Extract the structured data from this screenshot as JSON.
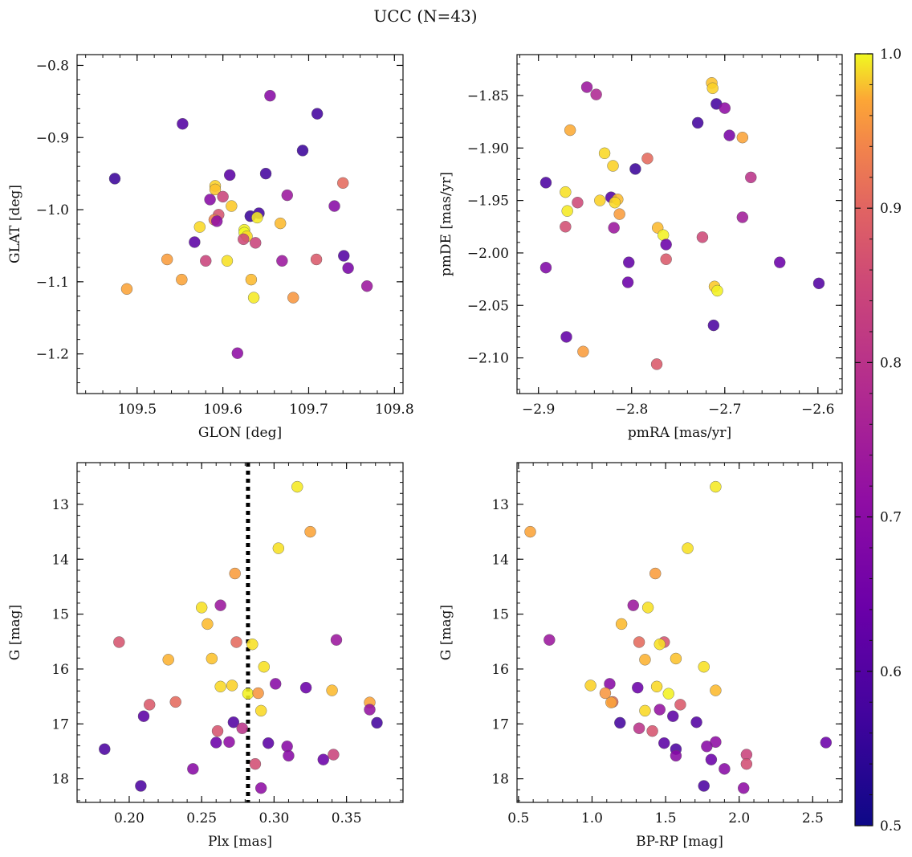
{
  "figure": {
    "title": "UCC (N=43)"
  },
  "colorbar": {
    "colormap": "plasma",
    "range": [
      0.5,
      1.0
    ],
    "ticks": [
      "0.5",
      "0.6",
      "0.7",
      "0.8",
      "0.9",
      "1.0"
    ]
  },
  "chart_data": [
    {
      "type": "scatter",
      "xlabel": "GLON [deg]",
      "ylabel": "GLAT [deg]",
      "xlim": [
        109.43,
        109.81
      ],
      "ylim": [
        -1.255,
        -0.785
      ],
      "y_inverted": false,
      "xticks": [
        109.5,
        109.6,
        109.7,
        109.8
      ],
      "xtick_labels": [
        "109.5",
        "109.6",
        "109.7",
        "109.8"
      ],
      "yticks": [
        -0.8,
        -0.9,
        -1.0,
        -1.1,
        -1.2
      ],
      "ytick_labels": [
        "−0.8",
        "−0.9",
        "−1.0",
        "−1.1",
        "−1.2"
      ],
      "points": [
        {
          "x": 109.474,
          "y": -0.957,
          "c": 0.52
        },
        {
          "x": 109.553,
          "y": -0.881,
          "c": 0.55
        },
        {
          "x": 109.655,
          "y": -0.842,
          "c": 0.62
        },
        {
          "x": 109.71,
          "y": -0.867,
          "c": 0.53
        },
        {
          "x": 109.693,
          "y": -0.918,
          "c": 0.52
        },
        {
          "x": 109.608,
          "y": -0.952,
          "c": 0.56
        },
        {
          "x": 109.65,
          "y": -0.95,
          "c": 0.53
        },
        {
          "x": 109.74,
          "y": -0.963,
          "c": 0.8
        },
        {
          "x": 109.675,
          "y": -0.98,
          "c": 0.65
        },
        {
          "x": 109.591,
          "y": -0.967,
          "c": 0.95
        },
        {
          "x": 109.591,
          "y": -0.972,
          "c": 0.93
        },
        {
          "x": 109.585,
          "y": -0.986,
          "c": 0.62
        },
        {
          "x": 109.6,
          "y": -0.982,
          "c": 0.73
        },
        {
          "x": 109.61,
          "y": -0.995,
          "c": 0.94
        },
        {
          "x": 109.595,
          "y": -1.007,
          "c": 0.76
        },
        {
          "x": 109.59,
          "y": -1.014,
          "c": 0.84
        },
        {
          "x": 109.593,
          "y": -1.016,
          "c": 0.63
        },
        {
          "x": 109.573,
          "y": -1.024,
          "c": 0.96
        },
        {
          "x": 109.632,
          "y": -1.009,
          "c": 0.52
        },
        {
          "x": 109.642,
          "y": -1.005,
          "c": 0.53
        },
        {
          "x": 109.64,
          "y": -1.011,
          "c": 0.98
        },
        {
          "x": 109.667,
          "y": -1.019,
          "c": 0.92
        },
        {
          "x": 109.73,
          "y": -0.995,
          "c": 0.62
        },
        {
          "x": 109.625,
          "y": -1.028,
          "c": 0.99
        },
        {
          "x": 109.625,
          "y": -1.032,
          "c": 1.0
        },
        {
          "x": 109.628,
          "y": -1.037,
          "c": 0.96
        },
        {
          "x": 109.624,
          "y": -1.041,
          "c": 0.74
        },
        {
          "x": 109.638,
          "y": -1.046,
          "c": 0.73
        },
        {
          "x": 109.567,
          "y": -1.045,
          "c": 0.56
        },
        {
          "x": 109.741,
          "y": -1.064,
          "c": 0.55
        },
        {
          "x": 109.535,
          "y": -1.069,
          "c": 0.88
        },
        {
          "x": 109.58,
          "y": -1.071,
          "c": 0.73
        },
        {
          "x": 109.605,
          "y": -1.071,
          "c": 0.97
        },
        {
          "x": 109.669,
          "y": -1.071,
          "c": 0.65
        },
        {
          "x": 109.709,
          "y": -1.069,
          "c": 0.77
        },
        {
          "x": 109.746,
          "y": -1.081,
          "c": 0.6
        },
        {
          "x": 109.552,
          "y": -1.097,
          "c": 0.89
        },
        {
          "x": 109.633,
          "y": -1.097,
          "c": 0.92
        },
        {
          "x": 109.768,
          "y": -1.106,
          "c": 0.65
        },
        {
          "x": 109.488,
          "y": -1.11,
          "c": 0.89
        },
        {
          "x": 109.636,
          "y": -1.122,
          "c": 0.98
        },
        {
          "x": 109.682,
          "y": -1.122,
          "c": 0.87
        },
        {
          "x": 109.617,
          "y": -1.199,
          "c": 0.63
        }
      ]
    },
    {
      "type": "scatter",
      "xlabel": "pmRA [mas/yr]",
      "ylabel": "pmDE [mas/yr]",
      "xlim": [
        -2.923,
        -2.574
      ],
      "ylim": [
        -2.134,
        -1.811
      ],
      "y_inverted": false,
      "xticks": [
        -2.9,
        -2.8,
        -2.7,
        -2.6
      ],
      "xtick_labels": [
        "−2.9",
        "−2.8",
        "−2.7",
        "−2.6"
      ],
      "yticks": [
        -1.85,
        -1.9,
        -1.95,
        -2.0,
        -2.05,
        -2.1
      ],
      "ytick_labels": [
        "−1.85",
        "−1.90",
        "−1.95",
        "−2.00",
        "−2.05",
        "−2.10"
      ],
      "points": [
        {
          "x": -2.714,
          "y": -1.838,
          "c": 0.93
        },
        {
          "x": -2.713,
          "y": -1.843,
          "c": 0.95
        },
        {
          "x": -2.848,
          "y": -1.842,
          "c": 0.65
        },
        {
          "x": -2.838,
          "y": -1.849,
          "c": 0.68
        },
        {
          "x": -2.709,
          "y": -1.858,
          "c": 0.53
        },
        {
          "x": -2.7,
          "y": -1.862,
          "c": 0.63
        },
        {
          "x": -2.729,
          "y": -1.876,
          "c": 0.53
        },
        {
          "x": -2.866,
          "y": -1.883,
          "c": 0.9
        },
        {
          "x": -2.695,
          "y": -1.888,
          "c": 0.6
        },
        {
          "x": -2.681,
          "y": -1.89,
          "c": 0.89
        },
        {
          "x": -2.829,
          "y": -1.905,
          "c": 0.96
        },
        {
          "x": -2.783,
          "y": -1.91,
          "c": 0.8
        },
        {
          "x": -2.82,
          "y": -1.917,
          "c": 0.95
        },
        {
          "x": -2.796,
          "y": -1.92,
          "c": 0.52
        },
        {
          "x": -2.892,
          "y": -1.933,
          "c": 0.54
        },
        {
          "x": -2.672,
          "y": -1.928,
          "c": 0.7
        },
        {
          "x": -2.871,
          "y": -1.942,
          "c": 0.97
        },
        {
          "x": -2.822,
          "y": -1.947,
          "c": 0.55
        },
        {
          "x": -2.815,
          "y": -1.949,
          "c": 0.92
        },
        {
          "x": -2.834,
          "y": -1.95,
          "c": 0.95
        },
        {
          "x": -2.818,
          "y": -1.952,
          "c": 0.96
        },
        {
          "x": -2.858,
          "y": -1.952,
          "c": 0.74
        },
        {
          "x": -2.869,
          "y": -1.96,
          "c": 0.98
        },
        {
          "x": -2.813,
          "y": -1.963,
          "c": 0.88
        },
        {
          "x": -2.681,
          "y": -1.966,
          "c": 0.66
        },
        {
          "x": -2.871,
          "y": -1.975,
          "c": 0.75
        },
        {
          "x": -2.819,
          "y": -1.976,
          "c": 0.65
        },
        {
          "x": -2.772,
          "y": -1.976,
          "c": 0.92
        },
        {
          "x": -2.766,
          "y": -1.983,
          "c": 0.99
        },
        {
          "x": -2.724,
          "y": -1.985,
          "c": 0.74
        },
        {
          "x": -2.763,
          "y": -1.992,
          "c": 0.58
        },
        {
          "x": -2.763,
          "y": -2.006,
          "c": 0.77
        },
        {
          "x": -2.641,
          "y": -2.009,
          "c": 0.58
        },
        {
          "x": -2.803,
          "y": -2.009,
          "c": 0.57
        },
        {
          "x": -2.892,
          "y": -2.014,
          "c": 0.61
        },
        {
          "x": -2.804,
          "y": -2.028,
          "c": 0.58
        },
        {
          "x": -2.599,
          "y": -2.029,
          "c": 0.55
        },
        {
          "x": -2.711,
          "y": -2.032,
          "c": 0.94
        },
        {
          "x": -2.708,
          "y": -2.036,
          "c": 0.99
        },
        {
          "x": -2.712,
          "y": -2.069,
          "c": 0.54
        },
        {
          "x": -2.87,
          "y": -2.08,
          "c": 0.57
        },
        {
          "x": -2.852,
          "y": -2.094,
          "c": 0.88
        },
        {
          "x": -2.773,
          "y": -2.106,
          "c": 0.77
        }
      ]
    },
    {
      "type": "scatter",
      "xlabel": "Plx [mas]",
      "ylabel": "G [mag]",
      "xlim": [
        0.164,
        0.389
      ],
      "ylim": [
        18.43,
        12.24
      ],
      "y_inverted": true,
      "vline": {
        "x": 0.282,
        "style": "dotted"
      },
      "xticks": [
        0.2,
        0.25,
        0.3,
        0.35
      ],
      "xtick_labels": [
        "0.20",
        "0.25",
        "0.30",
        "0.35"
      ],
      "yticks": [
        13,
        14,
        15,
        16,
        17,
        18
      ],
      "ytick_labels": [
        "13",
        "14",
        "15",
        "16",
        "17",
        "18"
      ],
      "points": [
        {
          "x": 0.316,
          "y": 12.68,
          "c": 0.98
        },
        {
          "x": 0.325,
          "y": 13.5,
          "c": 0.89
        },
        {
          "x": 0.303,
          "y": 13.8,
          "c": 0.97
        },
        {
          "x": 0.273,
          "y": 14.26,
          "c": 0.88
        },
        {
          "x": 0.263,
          "y": 14.84,
          "c": 0.65
        },
        {
          "x": 0.25,
          "y": 14.88,
          "c": 0.97
        },
        {
          "x": 0.254,
          "y": 15.18,
          "c": 0.92
        },
        {
          "x": 0.343,
          "y": 15.47,
          "c": 0.65
        },
        {
          "x": 0.193,
          "y": 15.51,
          "c": 0.76
        },
        {
          "x": 0.274,
          "y": 15.51,
          "c": 0.8
        },
        {
          "x": 0.285,
          "y": 15.55,
          "c": 0.97
        },
        {
          "x": 0.227,
          "y": 15.83,
          "c": 0.91
        },
        {
          "x": 0.257,
          "y": 15.81,
          "c": 0.93
        },
        {
          "x": 0.293,
          "y": 15.96,
          "c": 0.97
        },
        {
          "x": 0.301,
          "y": 16.27,
          "c": 0.62
        },
        {
          "x": 0.263,
          "y": 16.32,
          "c": 0.96
        },
        {
          "x": 0.271,
          "y": 16.3,
          "c": 0.95
        },
        {
          "x": 0.322,
          "y": 16.34,
          "c": 0.58
        },
        {
          "x": 0.34,
          "y": 16.39,
          "c": 0.92
        },
        {
          "x": 0.282,
          "y": 16.45,
          "c": 0.99
        },
        {
          "x": 0.289,
          "y": 16.44,
          "c": 0.87
        },
        {
          "x": 0.232,
          "y": 16.6,
          "c": 0.8
        },
        {
          "x": 0.366,
          "y": 16.61,
          "c": 0.89
        },
        {
          "x": 0.214,
          "y": 16.65,
          "c": 0.77
        },
        {
          "x": 0.366,
          "y": 16.74,
          "c": 0.64
        },
        {
          "x": 0.291,
          "y": 16.76,
          "c": 0.96
        },
        {
          "x": 0.21,
          "y": 16.86,
          "c": 0.56
        },
        {
          "x": 0.272,
          "y": 16.97,
          "c": 0.55
        },
        {
          "x": 0.371,
          "y": 16.98,
          "c": 0.53
        },
        {
          "x": 0.278,
          "y": 17.08,
          "c": 0.7
        },
        {
          "x": 0.261,
          "y": 17.13,
          "c": 0.76
        },
        {
          "x": 0.26,
          "y": 17.34,
          "c": 0.58
        },
        {
          "x": 0.269,
          "y": 17.33,
          "c": 0.63
        },
        {
          "x": 0.296,
          "y": 17.35,
          "c": 0.56
        },
        {
          "x": 0.309,
          "y": 17.41,
          "c": 0.62
        },
        {
          "x": 0.183,
          "y": 17.46,
          "c": 0.54
        },
        {
          "x": 0.31,
          "y": 17.58,
          "c": 0.62
        },
        {
          "x": 0.341,
          "y": 17.56,
          "c": 0.73
        },
        {
          "x": 0.334,
          "y": 17.65,
          "c": 0.58
        },
        {
          "x": 0.287,
          "y": 17.73,
          "c": 0.75
        },
        {
          "x": 0.244,
          "y": 17.82,
          "c": 0.62
        },
        {
          "x": 0.208,
          "y": 18.13,
          "c": 0.54
        },
        {
          "x": 0.291,
          "y": 18.17,
          "c": 0.63
        }
      ]
    },
    {
      "type": "scatter",
      "xlabel": "BP-RP [mag]",
      "ylabel": "G [mag]",
      "xlim": [
        0.49,
        2.7
      ],
      "ylim": [
        18.43,
        12.24
      ],
      "y_inverted": true,
      "xticks": [
        0.5,
        1.0,
        1.5,
        2.0,
        2.5
      ],
      "xtick_labels": [
        "0.5",
        "1.0",
        "1.5",
        "2.0",
        "2.5"
      ],
      "yticks": [
        13,
        14,
        15,
        16,
        17,
        18
      ],
      "ytick_labels": [
        "13",
        "14",
        "15",
        "16",
        "17",
        "18"
      ],
      "points": [
        {
          "x": 1.84,
          "y": 12.68,
          "c": 0.98
        },
        {
          "x": 0.58,
          "y": 13.5,
          "c": 0.89
        },
        {
          "x": 1.65,
          "y": 13.8,
          "c": 0.97
        },
        {
          "x": 1.43,
          "y": 14.26,
          "c": 0.88
        },
        {
          "x": 1.28,
          "y": 14.84,
          "c": 0.65
        },
        {
          "x": 1.38,
          "y": 14.88,
          "c": 0.97
        },
        {
          "x": 1.2,
          "y": 15.18,
          "c": 0.92
        },
        {
          "x": 0.71,
          "y": 15.47,
          "c": 0.65
        },
        {
          "x": 1.49,
          "y": 15.51,
          "c": 0.76
        },
        {
          "x": 1.32,
          "y": 15.51,
          "c": 0.8
        },
        {
          "x": 1.46,
          "y": 15.55,
          "c": 0.97
        },
        {
          "x": 1.36,
          "y": 15.83,
          "c": 0.91
        },
        {
          "x": 1.57,
          "y": 15.81,
          "c": 0.93
        },
        {
          "x": 1.76,
          "y": 15.96,
          "c": 0.97
        },
        {
          "x": 1.12,
          "y": 16.27,
          "c": 0.62
        },
        {
          "x": 0.99,
          "y": 16.3,
          "c": 0.95
        },
        {
          "x": 1.44,
          "y": 16.32,
          "c": 0.96
        },
        {
          "x": 1.31,
          "y": 16.34,
          "c": 0.58
        },
        {
          "x": 1.84,
          "y": 16.39,
          "c": 0.92
        },
        {
          "x": 1.52,
          "y": 16.45,
          "c": 0.99
        },
        {
          "x": 1.09,
          "y": 16.44,
          "c": 0.87
        },
        {
          "x": 1.14,
          "y": 16.6,
          "c": 0.8
        },
        {
          "x": 1.13,
          "y": 16.61,
          "c": 0.89
        },
        {
          "x": 1.6,
          "y": 16.65,
          "c": 0.77
        },
        {
          "x": 1.46,
          "y": 16.74,
          "c": 0.64
        },
        {
          "x": 1.36,
          "y": 16.76,
          "c": 0.96
        },
        {
          "x": 1.55,
          "y": 16.86,
          "c": 0.56
        },
        {
          "x": 1.71,
          "y": 16.97,
          "c": 0.55
        },
        {
          "x": 1.19,
          "y": 16.98,
          "c": 0.53
        },
        {
          "x": 1.32,
          "y": 17.08,
          "c": 0.7
        },
        {
          "x": 1.41,
          "y": 17.13,
          "c": 0.76
        },
        {
          "x": 2.59,
          "y": 17.34,
          "c": 0.58
        },
        {
          "x": 1.84,
          "y": 17.33,
          "c": 0.63
        },
        {
          "x": 1.49,
          "y": 17.35,
          "c": 0.56
        },
        {
          "x": 1.78,
          "y": 17.41,
          "c": 0.62
        },
        {
          "x": 1.57,
          "y": 17.46,
          "c": 0.54
        },
        {
          "x": 1.57,
          "y": 17.58,
          "c": 0.62
        },
        {
          "x": 2.05,
          "y": 17.56,
          "c": 0.73
        },
        {
          "x": 1.81,
          "y": 17.65,
          "c": 0.58
        },
        {
          "x": 2.05,
          "y": 17.73,
          "c": 0.75
        },
        {
          "x": 1.9,
          "y": 17.82,
          "c": 0.62
        },
        {
          "x": 1.76,
          "y": 18.13,
          "c": 0.54
        },
        {
          "x": 2.03,
          "y": 18.17,
          "c": 0.63
        }
      ]
    }
  ]
}
